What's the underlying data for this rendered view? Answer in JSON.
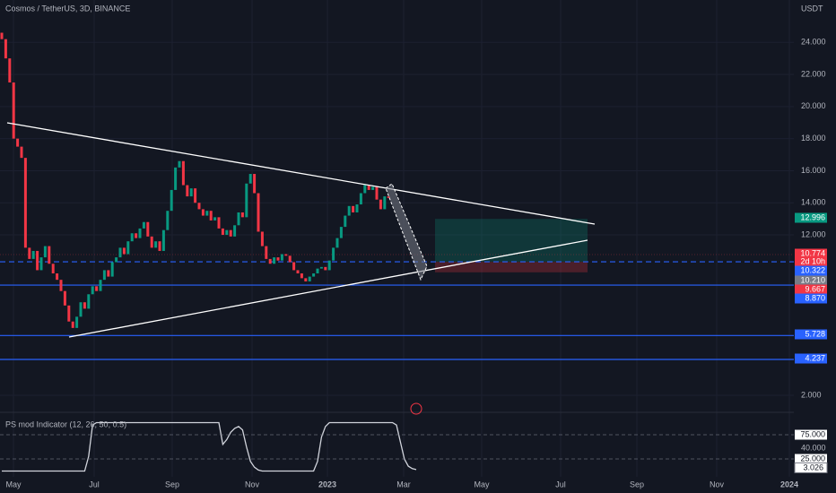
{
  "header": {
    "title": "Cosmos / TetherUS, 3D, BINANCE",
    "currency": "USDT"
  },
  "chart_data": {
    "type": "candlestick",
    "ylim": [
      1.22,
      26.64
    ],
    "yticks": [
      {
        "value": 24,
        "label": "24.000"
      },
      {
        "value": 22,
        "label": "22.000"
      },
      {
        "value": 20,
        "label": "20.000"
      },
      {
        "value": 18,
        "label": "18.000"
      },
      {
        "value": 16,
        "label": "16.000"
      },
      {
        "value": 14,
        "label": "14.000"
      },
      {
        "value": 12,
        "label": "12.000"
      },
      {
        "value": 2,
        "label": "2.000"
      }
    ],
    "months": [
      "May",
      "Jul",
      "Sep",
      "Nov",
      "2023",
      "Mar",
      "May",
      "Jul",
      "Sep",
      "Nov",
      "2024"
    ],
    "first_open": 24.6,
    "close": [
      24.2,
      23,
      21.5,
      18,
      17.5,
      16.8,
      11.2,
      10.5,
      11,
      9.8,
      10.6,
      11.3,
      10.2,
      9.6,
      9.2,
      8.5,
      7.6,
      6.6,
      6.2,
      6.9,
      7.8,
      7.4,
      8.3,
      8.8,
      8.5,
      9.2,
      9.8,
      9.4,
      10.3,
      10.6,
      11.2,
      10.8,
      11.6,
      12.1,
      11.8,
      12.4,
      12.8,
      11.9,
      11.2,
      11.6,
      11.0,
      12.3,
      13.5,
      14.8,
      16.2,
      16.6,
      15.1,
      14.4,
      14.9,
      14.0,
      13.6,
      13.2,
      13.5,
      12.9,
      13.1,
      12.4,
      12.0,
      12.3,
      11.9,
      12.6,
      13.4,
      13.1,
      15.2,
      15.8,
      14.6,
      12.2,
      11.3,
      10.5,
      10.2,
      10.6,
      10.4,
      10.8,
      10.7,
      10.3,
      9.8,
      9.6,
      9.3,
      9.1,
      9.4,
      9.6,
      9.9,
      10.0,
      9.8,
      10.4,
      11.2,
      11.8,
      12.5,
      13.2,
      13.8,
      13.4,
      13.9,
      14.6,
      15.1,
      14.8,
      15.0,
      14.2,
      13.6,
      14.4,
      14.3
    ],
    "up_color": "#089981",
    "down_color": "#f23645",
    "price_lines": [
      {
        "value": 10.322,
        "color": "#2962ff",
        "style": "dashed"
      },
      {
        "value": 8.87,
        "color": "#2962ff",
        "style": "solid"
      },
      {
        "value": 5.728,
        "color": "#2962ff",
        "style": "solid"
      },
      {
        "value": 4.237,
        "color": "#2962ff",
        "style": "solid"
      },
      {
        "value": 10.774,
        "color": "#f23645",
        "style": "dotted"
      }
    ],
    "position": {
      "target": 12.996,
      "stop": 9.667
    },
    "badges": [
      {
        "value": 12.996,
        "label": "12.996",
        "color": "#089981"
      },
      {
        "value": 10.774,
        "label": "10.774",
        "color": "#f23645"
      },
      {
        "value": 10.322,
        "label": "10.322",
        "color": "#2962ff"
      },
      {
        "value": 10.21,
        "label": "10.210",
        "color": "#787b86"
      },
      {
        "value": 9.667,
        "label": "9.667",
        "color": "#f23645"
      },
      {
        "value": 8.87,
        "label": "8.870",
        "color": "#2962ff"
      },
      {
        "value": 5.728,
        "label": "5.728",
        "color": "#2962ff"
      },
      {
        "value": 4.237,
        "label": "4.237",
        "color": "#2962ff"
      }
    ],
    "countdown": "2d 10h"
  },
  "indicator": {
    "type": "line",
    "title": "PS mod Indicator (12, 26, 50, 0.5)",
    "ylim": [
      -12,
      112
    ],
    "color": "#d1d4dc",
    "yticks": [
      {
        "value": 40,
        "label": "40.000"
      }
    ],
    "levels": [
      {
        "value": 75,
        "label": "75.000"
      },
      {
        "value": 25,
        "label": "25.000"
      }
    ],
    "values": [
      0,
      0,
      0,
      0,
      0,
      0,
      0,
      0,
      0,
      0,
      0,
      0,
      0,
      0,
      0,
      0,
      0,
      0,
      0,
      0,
      0,
      0,
      30,
      95,
      100,
      100,
      100,
      100,
      100,
      100,
      100,
      100,
      100,
      100,
      100,
      100,
      100,
      100,
      100,
      100,
      100,
      100,
      100,
      100,
      100,
      100,
      100,
      100,
      100,
      100,
      100,
      100,
      100,
      100,
      100,
      100,
      55,
      65,
      80,
      88,
      92,
      85,
      50,
      20,
      8,
      2,
      0,
      0,
      0,
      0,
      0,
      0,
      0,
      0,
      0,
      0,
      0,
      0,
      0,
      0,
      20,
      70,
      92,
      100,
      100,
      100,
      100,
      100,
      100,
      100,
      100,
      100,
      100,
      100,
      100,
      100,
      100,
      100,
      100,
      100,
      95,
      60,
      25,
      10,
      5,
      3.026
    ],
    "last_label": "3.026"
  }
}
